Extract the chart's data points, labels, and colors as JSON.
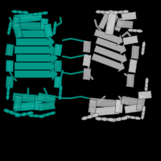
{
  "background_color": "#000000",
  "teal": "#009988",
  "teal_light": "#00AA99",
  "teal_dark": "#007766",
  "teal_edge": "#004444",
  "gray": "#AAAAAA",
  "gray_light": "#CCCCCC",
  "gray_dark": "#888888",
  "gray_edge": "#444444",
  "figsize": [
    2.0,
    2.0
  ],
  "dpi": 100
}
